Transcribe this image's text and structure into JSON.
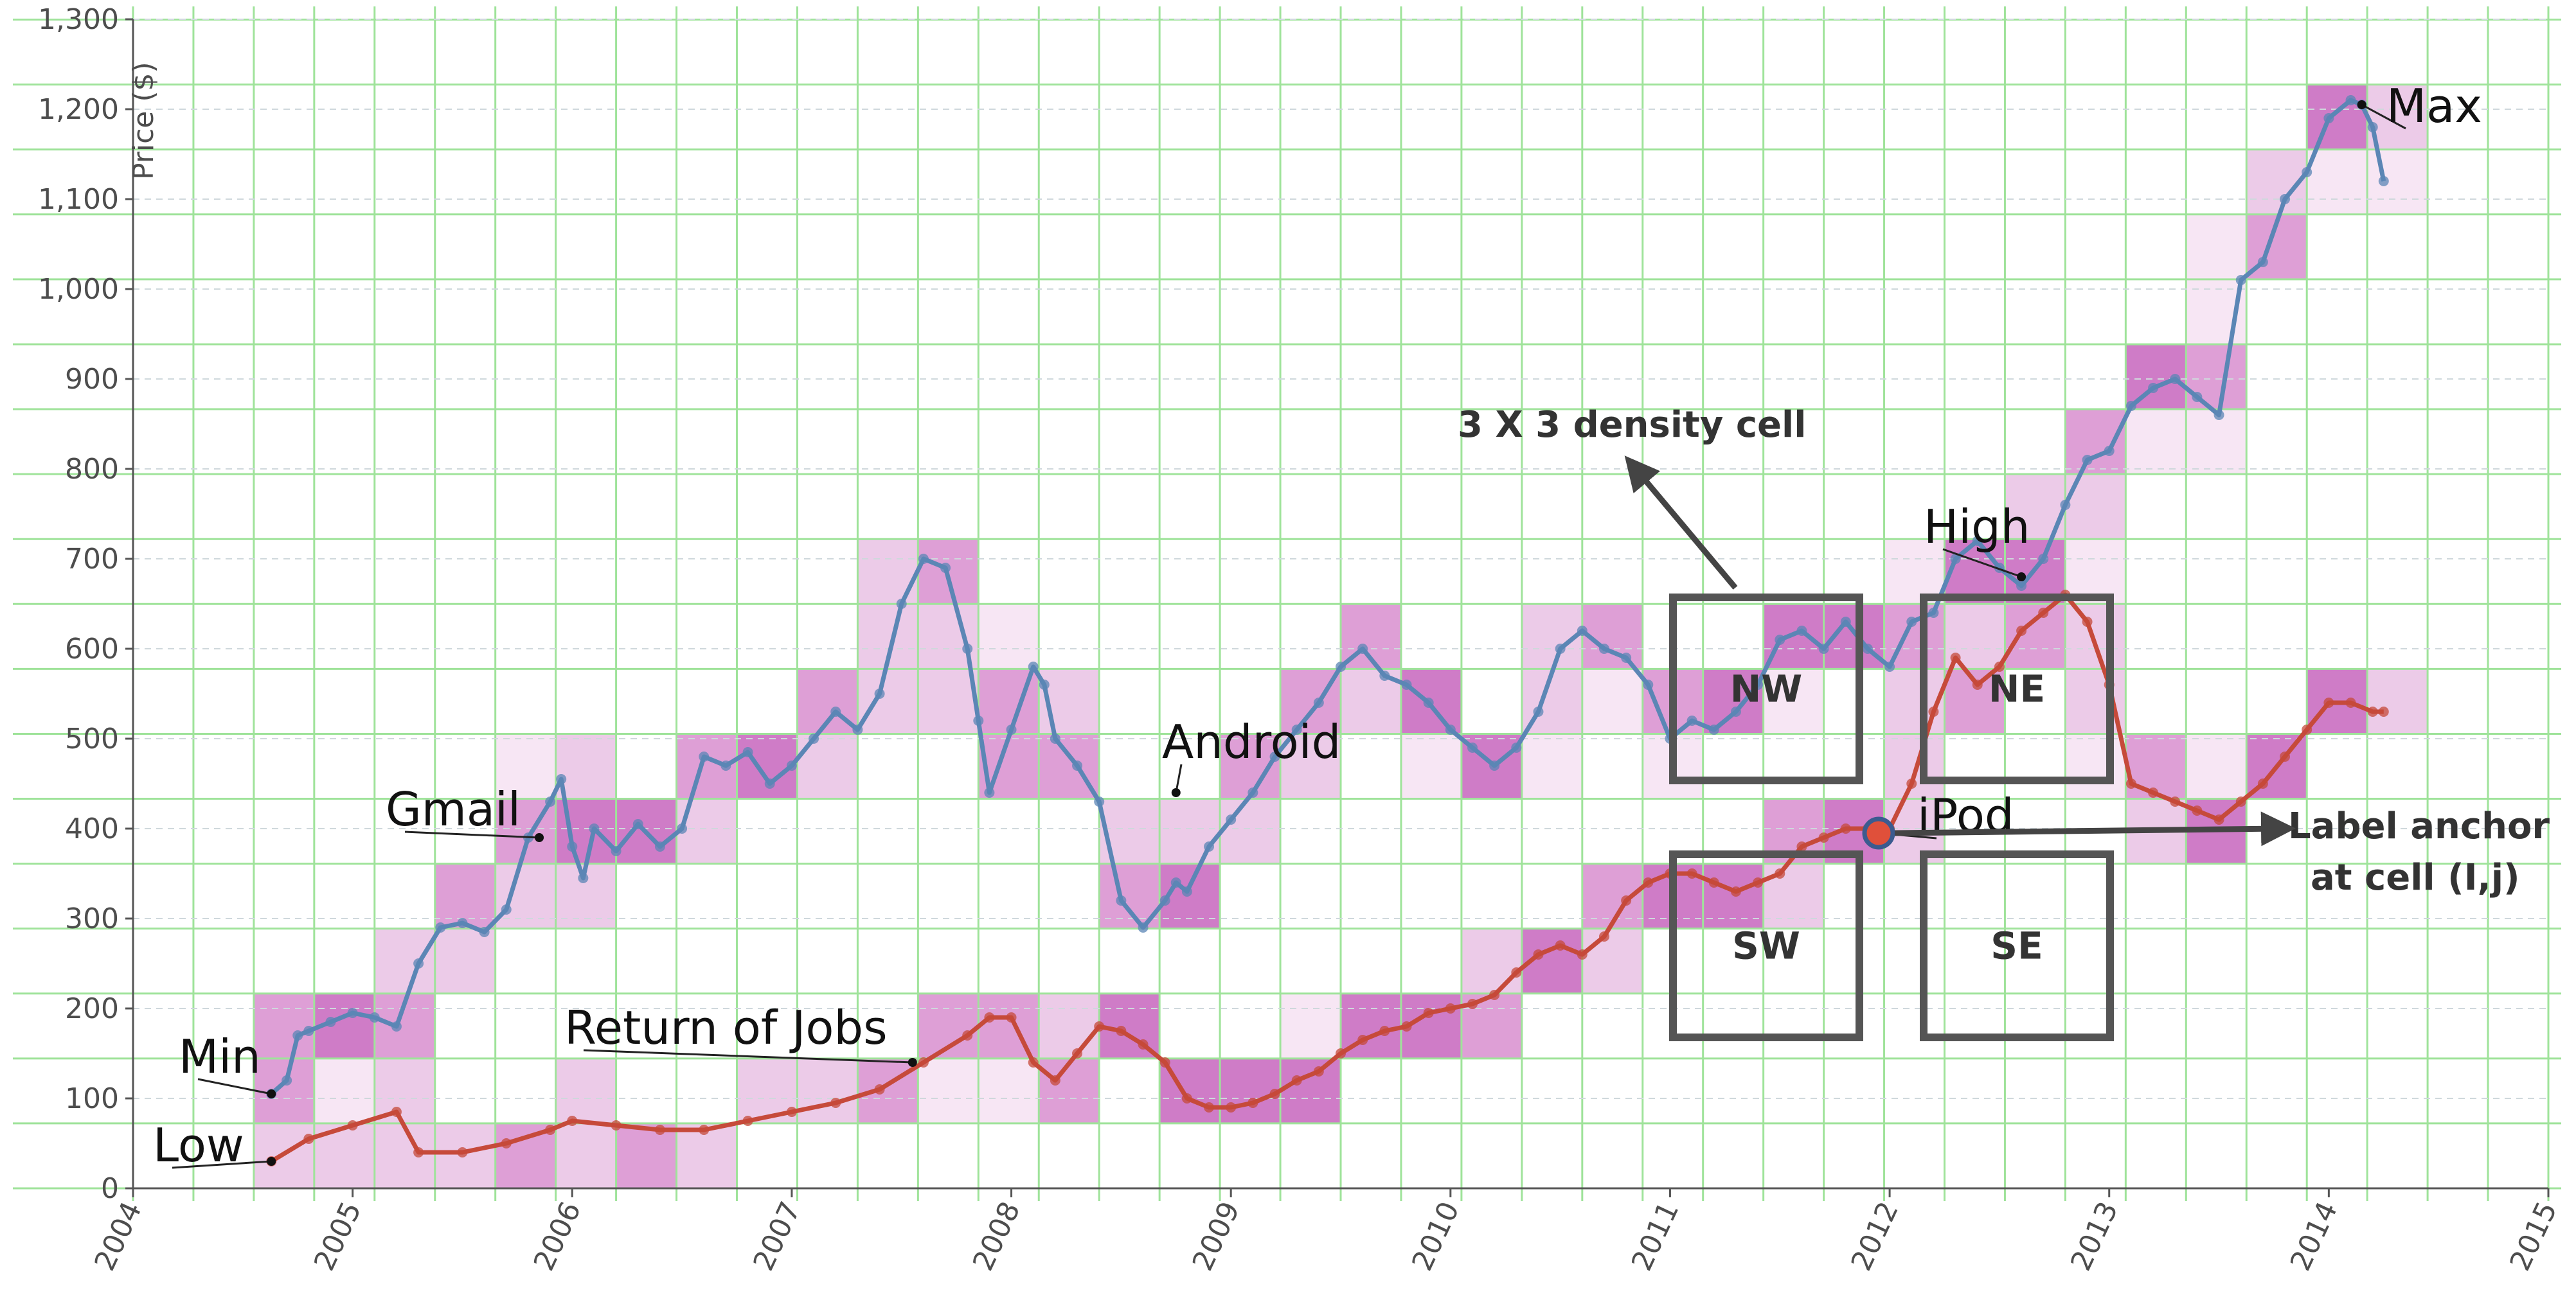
{
  "chart_data": {
    "type": "line",
    "title": "",
    "xlabel": "",
    "ylabel": "Price ($)",
    "xlim": [
      2004,
      2015
    ],
    "ylim": [
      0,
      1300
    ],
    "x_ticks": [
      "2004",
      "2005",
      "2006",
      "2007",
      "2008",
      "2009",
      "2010",
      "2011",
      "2012",
      "2013",
      "2014",
      "2015"
    ],
    "y_ticks": [
      "0",
      "100",
      "200",
      "300",
      "400",
      "500",
      "600",
      "700",
      "800",
      "900",
      "1,000",
      "1,100",
      "1,200",
      "1,300"
    ],
    "grid": true,
    "density_grid": {
      "x_step": 0.275,
      "y_step": 72.2,
      "colors": [
        "#f7e6f4",
        "#eccbe8",
        "#de9fd6",
        "#cf7cc7"
      ]
    },
    "series": [
      {
        "name": "",
        "color": "#5b86b5",
        "x": [
          2004.63,
          2004.7,
          2004.75,
          2004.8,
          2004.9,
          2005.0,
          2005.1,
          2005.2,
          2005.3,
          2005.4,
          2005.5,
          2005.6,
          2005.7,
          2005.8,
          2005.9,
          2005.95,
          2006.0,
          2006.05,
          2006.1,
          2006.2,
          2006.3,
          2006.4,
          2006.5,
          2006.6,
          2006.7,
          2006.8,
          2006.9,
          2007.0,
          2007.1,
          2007.2,
          2007.3,
          2007.4,
          2007.5,
          2007.6,
          2007.7,
          2007.8,
          2007.85,
          2007.9,
          2008.0,
          2008.1,
          2008.15,
          2008.2,
          2008.3,
          2008.4,
          2008.5,
          2008.6,
          2008.7,
          2008.75,
          2008.8,
          2008.9,
          2009.0,
          2009.1,
          2009.2,
          2009.3,
          2009.4,
          2009.5,
          2009.6,
          2009.7,
          2009.8,
          2009.9,
          2010.0,
          2010.1,
          2010.2,
          2010.3,
          2010.4,
          2010.5,
          2010.6,
          2010.7,
          2010.8,
          2010.9,
          2011.0,
          2011.1,
          2011.2,
          2011.3,
          2011.4,
          2011.5,
          2011.6,
          2011.7,
          2011.8,
          2011.9,
          2012.0,
          2012.1,
          2012.2,
          2012.3,
          2012.4,
          2012.5,
          2012.6,
          2012.7,
          2012.8,
          2012.9,
          2013.0,
          2013.1,
          2013.2,
          2013.3,
          2013.4,
          2013.5,
          2013.6,
          2013.7,
          2013.8,
          2013.9,
          2014.0,
          2014.1,
          2014.15,
          2014.2,
          2014.25
        ],
        "y": [
          105,
          120,
          170,
          175,
          185,
          195,
          190,
          180,
          250,
          290,
          295,
          285,
          310,
          390,
          430,
          455,
          380,
          345,
          400,
          375,
          405,
          380,
          400,
          480,
          470,
          485,
          450,
          470,
          500,
          530,
          510,
          550,
          650,
          700,
          690,
          600,
          520,
          440,
          510,
          580,
          560,
          500,
          470,
          430,
          320,
          290,
          320,
          340,
          330,
          380,
          410,
          440,
          480,
          510,
          540,
          580,
          600,
          570,
          560,
          540,
          510,
          490,
          470,
          490,
          530,
          600,
          620,
          600,
          590,
          560,
          500,
          520,
          510,
          530,
          560,
          610,
          620,
          600,
          630,
          600,
          580,
          630,
          640,
          700,
          720,
          690,
          670,
          700,
          760,
          810,
          820,
          870,
          890,
          900,
          880,
          860,
          1010,
          1030,
          1100,
          1130,
          1190,
          1210,
          1205,
          1180,
          1120
        ],
        "markers": true
      },
      {
        "name": "",
        "color": "#c64a3a",
        "x": [
          2004.63,
          2004.8,
          2005.0,
          2005.2,
          2005.3,
          2005.5,
          2005.7,
          2005.9,
          2006.0,
          2006.2,
          2006.4,
          2006.6,
          2006.8,
          2007.0,
          2007.2,
          2007.4,
          2007.6,
          2007.8,
          2007.9,
          2008.0,
          2008.1,
          2008.2,
          2008.3,
          2008.4,
          2008.5,
          2008.6,
          2008.7,
          2008.8,
          2008.9,
          2009.0,
          2009.1,
          2009.2,
          2009.3,
          2009.4,
          2009.5,
          2009.6,
          2009.7,
          2009.8,
          2009.9,
          2010.0,
          2010.1,
          2010.2,
          2010.3,
          2010.4,
          2010.5,
          2010.6,
          2010.7,
          2010.8,
          2010.9,
          2011.0,
          2011.1,
          2011.2,
          2011.3,
          2011.4,
          2011.5,
          2011.6,
          2011.7,
          2011.8,
          2011.9,
          2012.0,
          2012.1,
          2012.2,
          2012.3,
          2012.4,
          2012.5,
          2012.6,
          2012.7,
          2012.8,
          2012.9,
          2013.0,
          2013.1,
          2013.2,
          2013.3,
          2013.4,
          2013.5,
          2013.6,
          2013.7,
          2013.8,
          2013.9,
          2014.0,
          2014.1,
          2014.2,
          2014.25
        ],
        "y": [
          30,
          55,
          70,
          85,
          40,
          40,
          50,
          65,
          75,
          70,
          65,
          65,
          75,
          85,
          95,
          110,
          140,
          170,
          190,
          190,
          140,
          120,
          150,
          180,
          175,
          160,
          140,
          100,
          90,
          90,
          95,
          105,
          120,
          130,
          150,
          165,
          175,
          180,
          195,
          200,
          205,
          215,
          240,
          260,
          270,
          260,
          280,
          320,
          340,
          350,
          350,
          340,
          330,
          340,
          350,
          380,
          390,
          400,
          400,
          400,
          450,
          530,
          590,
          560,
          580,
          620,
          640,
          660,
          630,
          560,
          450,
          440,
          430,
          420,
          410,
          430,
          450,
          480,
          510,
          540,
          540,
          530,
          530
        ],
        "markers": true
      }
    ],
    "annotations": [
      {
        "label": "Min",
        "x": 2004.63,
        "y": 105
      },
      {
        "label": "Low",
        "x": 2004.63,
        "y": 30
      },
      {
        "label": "Gmail",
        "x": 2005.85,
        "y": 390
      },
      {
        "label": "Return of Jobs",
        "x": 2007.55,
        "y": 140
      },
      {
        "label": "Android",
        "x": 2008.75,
        "y": 440
      },
      {
        "label": "iPod",
        "x": 2011.95,
        "y": 395
      },
      {
        "label": "High",
        "x": 2012.6,
        "y": 680
      },
      {
        "label": "Max",
        "x": 2014.15,
        "y": 1205
      }
    ],
    "regions": [
      {
        "label": "NW"
      },
      {
        "label": "NE"
      },
      {
        "label": "SW"
      },
      {
        "label": "SE"
      }
    ],
    "callouts": [
      {
        "label": "3 X 3 density cell"
      },
      {
        "label_line1": "Label anchor",
        "label_line2": "at cell (I,j)"
      }
    ]
  }
}
